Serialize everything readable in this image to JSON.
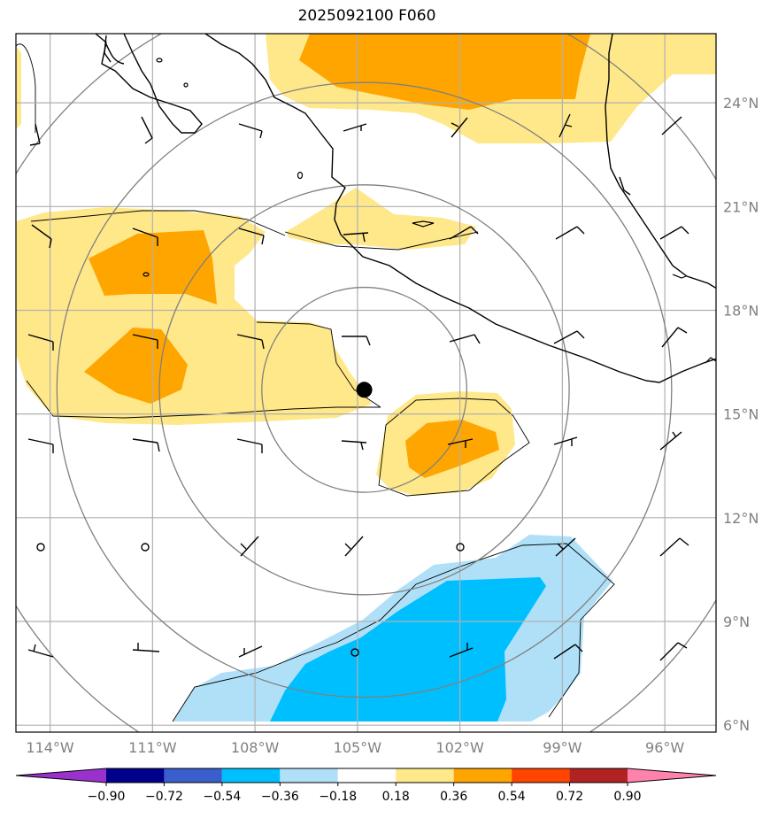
{
  "title": "2025092100 F060",
  "map": {
    "lon_range": [
      -115.0,
      -94.5
    ],
    "lat_range": [
      5.8,
      26.0
    ],
    "storm_center": {
      "lon": -104.8,
      "lat": 15.7
    },
    "range_ring_radii_deg": [
      3,
      6,
      9,
      12
    ],
    "lon_ticks": [
      {
        "value": -114,
        "label": "114°W"
      },
      {
        "value": -111,
        "label": "111°W"
      },
      {
        "value": -108,
        "label": "108°W"
      },
      {
        "value": -105,
        "label": "105°W"
      },
      {
        "value": -102,
        "label": "102°W"
      },
      {
        "value": -99,
        "label": "99°W"
      },
      {
        "value": -96,
        "label": "96°W"
      }
    ],
    "lat_ticks": [
      {
        "value": 24,
        "label": "24°N"
      },
      {
        "value": 21,
        "label": "21°N"
      },
      {
        "value": 18,
        "label": "18°N"
      },
      {
        "value": 15,
        "label": "15°N"
      },
      {
        "value": 12,
        "label": "12°N"
      },
      {
        "value": 9,
        "label": "9°N"
      },
      {
        "value": 6,
        "label": "6°N"
      }
    ],
    "grid": true
  },
  "colorbar": {
    "labels": [
      "−0.90",
      "−0.72",
      "−0.54",
      "−0.36",
      "−0.18",
      "0.18",
      "0.36",
      "0.54",
      "0.72",
      "0.90"
    ],
    "colors": [
      "#9932cc",
      "#00008b",
      "#3a5fcd",
      "#00bfff",
      "#b0e0f8",
      "#ffffff",
      "#ffe88a",
      "#ffa500",
      "#ff4500",
      "#b22222",
      "#ff82ab"
    ],
    "extend": "both"
  },
  "colors": {
    "light_yellow": "#ffe88a",
    "orange": "#ffa500",
    "light_blue": "#b0e0f8",
    "deep_sky_blue": "#00bfff",
    "grid": "#b0b0b0",
    "ring": "#808080",
    "tick_label": "#808080"
  }
}
